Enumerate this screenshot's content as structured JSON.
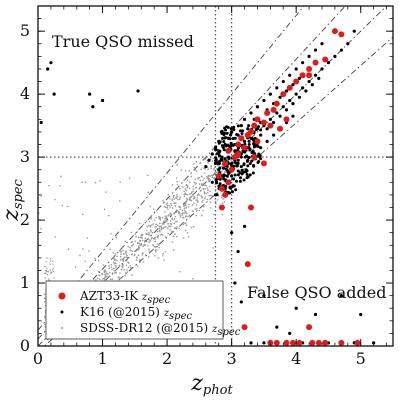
{
  "chart_data": {
    "type": "scatter",
    "xlabel": "z",
    "xlabel_sub": "phot",
    "ylabel": "z",
    "ylabel_sub": "spec",
    "xlim": [
      0,
      5.5
    ],
    "ylim": [
      0,
      5.4
    ],
    "x_ticks": [
      0,
      1,
      2,
      3,
      4,
      5
    ],
    "y_ticks": [
      0,
      1,
      2,
      3,
      4,
      5
    ],
    "grid": false,
    "legend_position": "bottom-left",
    "annotations": [
      {
        "text": "True QSO missed",
        "x": 0.15,
        "y": 4.9
      },
      {
        "text": "False QSO added",
        "x": 3.15,
        "y": 0.75
      }
    ],
    "reference_lines": {
      "vertical_dotted": [
        2.75,
        3.0
      ],
      "horizontal_dotted": [
        3.0
      ],
      "diagonal_dashdot_fractions": [
        -0.1,
        0,
        0.1,
        0.2
      ]
    },
    "series": [
      {
        "name": "AZT33-IK ",
        "name_sub": "spec",
        "name_suffix": "",
        "marker": "large-dot",
        "color": "#e31a1c",
        "points": [
          [
            2.8,
            2.7
          ],
          [
            2.85,
            2.5
          ],
          [
            2.9,
            2.9
          ],
          [
            2.95,
            3.1
          ],
          [
            3.05,
            3.0
          ],
          [
            3.1,
            3.2
          ],
          [
            3.15,
            3.3
          ],
          [
            3.2,
            3.15
          ],
          [
            3.25,
            3.35
          ],
          [
            3.3,
            3.4
          ],
          [
            3.35,
            3.5
          ],
          [
            3.4,
            3.6
          ],
          [
            3.5,
            3.55
          ],
          [
            3.55,
            3.7
          ],
          [
            3.6,
            3.5
          ],
          [
            3.65,
            3.75
          ],
          [
            3.7,
            3.85
          ],
          [
            3.8,
            4.0
          ],
          [
            3.9,
            4.1
          ],
          [
            4.0,
            4.2
          ],
          [
            4.1,
            4.3
          ],
          [
            4.2,
            4.4
          ],
          [
            4.3,
            4.5
          ],
          [
            4.45,
            4.55
          ],
          [
            4.6,
            5.0
          ],
          [
            4.7,
            4.95
          ],
          [
            2.85,
            2.2
          ],
          [
            2.9,
            2.4
          ],
          [
            2.95,
            2.6
          ],
          [
            3.0,
            2.8
          ],
          [
            3.1,
            3.05
          ],
          [
            3.3,
            2.2
          ],
          [
            3.5,
            2.9
          ],
          [
            3.6,
            0.05
          ],
          [
            3.7,
            0.05
          ],
          [
            3.85,
            0.05
          ],
          [
            3.95,
            0.05
          ],
          [
            4.05,
            0.05
          ],
          [
            4.25,
            0.05
          ],
          [
            4.35,
            0.05
          ],
          [
            4.45,
            0.05
          ],
          [
            4.7,
            0.05
          ],
          [
            4.95,
            0.05
          ],
          [
            3.25,
            1.3
          ],
          [
            3.2,
            0.3
          ],
          [
            4.2,
            0.3
          ],
          [
            3.35,
            3.0
          ],
          [
            3.4,
            3.25
          ],
          [
            3.75,
            3.45
          ],
          [
            3.85,
            3.6
          ],
          [
            4.2,
            4.3
          ]
        ]
      },
      {
        "name": "K16 (@2015) ",
        "name_sub": "spec",
        "name_suffix": "",
        "marker": "small-dot",
        "color": "#000000",
        "points": [
          [
            0.2,
            4.5
          ],
          [
            0.25,
            4.0
          ],
          [
            0.8,
            4.0
          ],
          [
            0.85,
            3.8
          ],
          [
            1.0,
            3.9
          ],
          [
            1.55,
            4.05
          ],
          [
            0.05,
            3.55
          ],
          [
            0.15,
            4.4
          ],
          [
            2.75,
            2.9
          ],
          [
            2.8,
            3.1
          ],
          [
            2.85,
            3.0
          ],
          [
            2.9,
            3.2
          ],
          [
            2.95,
            3.3
          ],
          [
            3.0,
            3.4
          ],
          [
            3.05,
            3.1
          ],
          [
            3.1,
            3.35
          ],
          [
            3.15,
            3.5
          ],
          [
            3.2,
            3.6
          ],
          [
            3.25,
            3.45
          ],
          [
            3.3,
            3.7
          ],
          [
            3.35,
            3.6
          ],
          [
            3.4,
            3.8
          ],
          [
            3.45,
            3.55
          ],
          [
            3.5,
            3.9
          ],
          [
            3.55,
            3.75
          ],
          [
            3.6,
            4.0
          ],
          [
            3.65,
            3.85
          ],
          [
            3.7,
            4.1
          ],
          [
            3.75,
            3.95
          ],
          [
            3.8,
            4.2
          ],
          [
            3.85,
            4.05
          ],
          [
            3.9,
            4.3
          ],
          [
            3.95,
            4.15
          ],
          [
            4.0,
            4.4
          ],
          [
            4.05,
            4.25
          ],
          [
            4.1,
            4.5
          ],
          [
            4.2,
            4.6
          ],
          [
            4.3,
            4.7
          ],
          [
            4.4,
            4.8
          ],
          [
            2.7,
            2.6
          ],
          [
            2.75,
            2.4
          ],
          [
            2.8,
            2.8
          ],
          [
            2.85,
            2.7
          ],
          [
            2.9,
            2.5
          ],
          [
            2.95,
            2.9
          ],
          [
            3.0,
            2.7
          ],
          [
            3.05,
            3.2
          ],
          [
            3.1,
            2.9
          ],
          [
            3.15,
            3.05
          ],
          [
            3.2,
            3.25
          ],
          [
            3.25,
            3.15
          ],
          [
            3.3,
            3.3
          ],
          [
            3.35,
            3.2
          ],
          [
            3.4,
            3.45
          ],
          [
            3.45,
            3.35
          ],
          [
            3.5,
            3.5
          ],
          [
            3.55,
            3.45
          ],
          [
            3.6,
            3.6
          ],
          [
            3.65,
            3.55
          ],
          [
            3.7,
            3.7
          ],
          [
            3.75,
            3.65
          ],
          [
            3.8,
            3.8
          ],
          [
            3.85,
            3.75
          ],
          [
            3.9,
            3.9
          ],
          [
            3.95,
            3.85
          ],
          [
            4.0,
            4.0
          ],
          [
            4.05,
            3.95
          ],
          [
            4.1,
            4.1
          ],
          [
            4.15,
            4.05
          ],
          [
            4.2,
            4.2
          ],
          [
            4.25,
            4.15
          ],
          [
            4.3,
            4.3
          ],
          [
            4.35,
            4.25
          ],
          [
            4.4,
            4.4
          ],
          [
            4.5,
            4.5
          ],
          [
            4.6,
            4.6
          ],
          [
            4.7,
            4.7
          ],
          [
            4.8,
            4.8
          ],
          [
            4.9,
            5.0
          ],
          [
            3.0,
            1.8
          ],
          [
            3.1,
            1.5
          ],
          [
            3.2,
            1.9
          ],
          [
            3.5,
            0.8
          ],
          [
            3.7,
            0.3
          ],
          [
            4.0,
            0.6
          ],
          [
            4.3,
            0.5
          ],
          [
            4.7,
            0.8
          ],
          [
            5.0,
            0.5
          ],
          [
            3.3,
            0.05
          ],
          [
            3.5,
            0.05
          ],
          [
            4.1,
            0.05
          ],
          [
            4.5,
            0.05
          ],
          [
            4.9,
            0.05
          ],
          [
            5.2,
            0.05
          ],
          [
            3.05,
            1.0
          ],
          [
            3.15,
            0.7
          ],
          [
            3.9,
            0.2
          ],
          [
            2.6,
            2.85
          ],
          [
            2.65,
            2.95
          ],
          [
            2.7,
            3.05
          ],
          [
            2.75,
            3.15
          ],
          [
            2.8,
            3.25
          ],
          [
            2.85,
            2.95
          ],
          [
            2.95,
            3.0
          ],
          [
            3.05,
            2.95
          ],
          [
            3.15,
            2.85
          ],
          [
            3.25,
            2.95
          ],
          [
            3.35,
            3.05
          ],
          [
            3.45,
            3.15
          ],
          [
            3.55,
            3.25
          ],
          [
            3.65,
            3.35
          ],
          [
            3.75,
            3.45
          ],
          [
            3.85,
            3.55
          ],
          [
            3.95,
            3.65
          ]
        ]
      },
      {
        "name": "SDSS-DR12 (@2015) ",
        "name_sub": "spec",
        "name_suffix": "",
        "marker": "tiny-dot",
        "color": "#9a9a9a",
        "generator": {
          "count": 900,
          "x_range": [
            0.1,
            3.0
          ],
          "relation": "y approx x with scatter",
          "y_scatter": 0.18
        }
      }
    ]
  }
}
